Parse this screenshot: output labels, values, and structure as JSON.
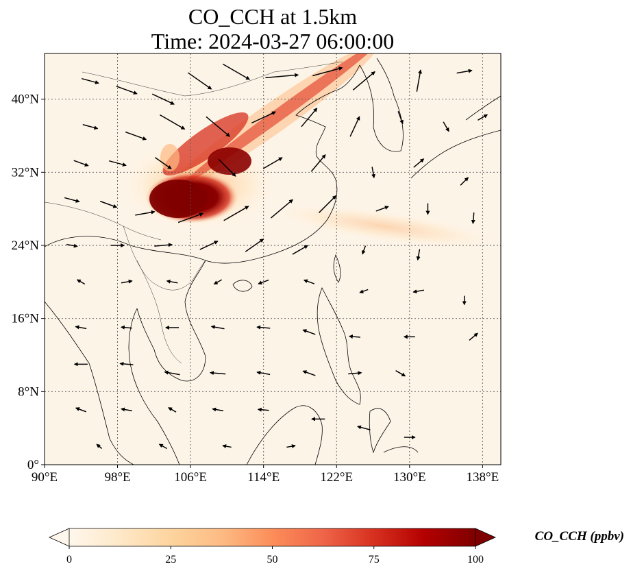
{
  "title": {
    "line1": "CO_CCH at 1.5km",
    "line2": "Time: 2024-03-27 06:00:00"
  },
  "map": {
    "lon_range": [
      90,
      140
    ],
    "lat_range": [
      0,
      45
    ],
    "lon_ticks": [
      {
        "value": 90,
        "label": "90°E"
      },
      {
        "value": 98,
        "label": "98°E"
      },
      {
        "value": 106,
        "label": "106°E"
      },
      {
        "value": 114,
        "label": "114°E"
      },
      {
        "value": 122,
        "label": "122°E"
      },
      {
        "value": 130,
        "label": "130°E"
      },
      {
        "value": 138,
        "label": "138°E"
      }
    ],
    "lat_ticks": [
      {
        "value": 0,
        "label": "0°"
      },
      {
        "value": 8,
        "label": "8°N"
      },
      {
        "value": 16,
        "label": "16°N"
      },
      {
        "value": 24,
        "label": "24°N"
      },
      {
        "value": 32,
        "label": "32°N"
      },
      {
        "value": 40,
        "label": "40°N"
      }
    ],
    "gridlines": true,
    "background_color": "#fdf4e8",
    "plumes": [
      {
        "name": "Sichuan Basin core",
        "lon": 104.5,
        "lat": 29.8,
        "value": 100
      },
      {
        "name": "northeast transport band",
        "lon": 119,
        "lat": 40.5,
        "value": 60
      },
      {
        "name": "western Pacific band",
        "lon": 133,
        "lat": 25,
        "value": 15
      }
    ],
    "wind_vectors": [
      {
        "lon": 95,
        "lat": 42,
        "dir": -15,
        "len": 0.8
      },
      {
        "lon": 99,
        "lat": 41,
        "dir": -20,
        "len": 1.0
      },
      {
        "lon": 103,
        "lat": 40,
        "dir": -25,
        "len": 1.1
      },
      {
        "lon": 107,
        "lat": 42,
        "dir": -35,
        "len": 1.3
      },
      {
        "lon": 111,
        "lat": 43,
        "dir": -30,
        "len": 1.4
      },
      {
        "lon": 116,
        "lat": 42.5,
        "dir": 5,
        "len": 1.5
      },
      {
        "lon": 121,
        "lat": 43,
        "dir": 15,
        "len": 1.4
      },
      {
        "lon": 125,
        "lat": 42,
        "dir": 40,
        "len": 1.3
      },
      {
        "lon": 131,
        "lat": 42,
        "dir": 80,
        "len": 1.0
      },
      {
        "lon": 136,
        "lat": 43,
        "dir": 10,
        "len": 0.7
      },
      {
        "lon": 95,
        "lat": 37,
        "dir": -15,
        "len": 0.7
      },
      {
        "lon": 100,
        "lat": 36,
        "dir": -20,
        "len": 1.0
      },
      {
        "lon": 104,
        "lat": 37.5,
        "dir": -30,
        "len": 1.3
      },
      {
        "lon": 109,
        "lat": 37,
        "dir": -40,
        "len": 1.4
      },
      {
        "lon": 114,
        "lat": 38,
        "dir": 25,
        "len": 1.2
      },
      {
        "lon": 119,
        "lat": 38,
        "dir": 50,
        "len": 1.1
      },
      {
        "lon": 124,
        "lat": 37,
        "dir": 65,
        "len": 1.0
      },
      {
        "lon": 129,
        "lat": 38,
        "dir": -70,
        "len": 0.6
      },
      {
        "lon": 134,
        "lat": 37,
        "dir": -60,
        "len": 0.5
      },
      {
        "lon": 138,
        "lat": 38,
        "dir": 30,
        "len": 0.5
      },
      {
        "lon": 94,
        "lat": 33,
        "dir": -20,
        "len": 0.7
      },
      {
        "lon": 98,
        "lat": 33,
        "dir": -15,
        "len": 0.8
      },
      {
        "lon": 103,
        "lat": 33,
        "dir": -35,
        "len": 0.9
      },
      {
        "lon": 110,
        "lat": 32.5,
        "dir": -45,
        "len": 1.1
      },
      {
        "lon": 115,
        "lat": 33,
        "dir": 30,
        "len": 1.0
      },
      {
        "lon": 120,
        "lat": 33,
        "dir": 50,
        "len": 1.0
      },
      {
        "lon": 126,
        "lat": 32,
        "dir": -80,
        "len": 0.5
      },
      {
        "lon": 131,
        "lat": 33,
        "dir": 40,
        "len": 0.6
      },
      {
        "lon": 136,
        "lat": 31,
        "dir": 45,
        "len": 0.5
      },
      {
        "lon": 93,
        "lat": 29,
        "dir": -15,
        "len": 0.7
      },
      {
        "lon": 97,
        "lat": 28.5,
        "dir": -20,
        "len": 0.8
      },
      {
        "lon": 101,
        "lat": 27.5,
        "dir": 10,
        "len": 0.9
      },
      {
        "lon": 106,
        "lat": 27,
        "dir": 20,
        "len": 1.2
      },
      {
        "lon": 111,
        "lat": 27.5,
        "dir": 30,
        "len": 1.3
      },
      {
        "lon": 116,
        "lat": 28,
        "dir": 40,
        "len": 1.3
      },
      {
        "lon": 121,
        "lat": 28.5,
        "dir": 45,
        "len": 1.1
      },
      {
        "lon": 127,
        "lat": 28,
        "dir": 20,
        "len": 0.6
      },
      {
        "lon": 132,
        "lat": 28,
        "dir": -90,
        "len": 0.5
      },
      {
        "lon": 137,
        "lat": 27,
        "dir": -95,
        "len": 0.5
      },
      {
        "lon": 93,
        "lat": 24,
        "dir": -10,
        "len": 0.5
      },
      {
        "lon": 98,
        "lat": 24,
        "dir": 0,
        "len": 0.6
      },
      {
        "lon": 103,
        "lat": 24,
        "dir": 5,
        "len": 0.8
      },
      {
        "lon": 108,
        "lat": 24,
        "dir": 25,
        "len": 0.9
      },
      {
        "lon": 113,
        "lat": 24,
        "dir": 35,
        "len": 1.0
      },
      {
        "lon": 118,
        "lat": 23.5,
        "dir": 30,
        "len": 0.8
      },
      {
        "lon": 125,
        "lat": 23.5,
        "dir": -110,
        "len": 0.4
      },
      {
        "lon": 131,
        "lat": 23,
        "dir": -100,
        "len": 0.5
      },
      {
        "lon": 94,
        "lat": 20,
        "dir": 150,
        "len": 0.4
      },
      {
        "lon": 99,
        "lat": 20,
        "dir": 10,
        "len": 0.5
      },
      {
        "lon": 104,
        "lat": 20,
        "dir": 170,
        "len": 0.5
      },
      {
        "lon": 109,
        "lat": 20,
        "dir": -150,
        "len": 0.4
      },
      {
        "lon": 114,
        "lat": 20,
        "dir": -160,
        "len": 0.5
      },
      {
        "lon": 119,
        "lat": 20,
        "dir": 160,
        "len": 0.5
      },
      {
        "lon": 125,
        "lat": 19,
        "dir": -160,
        "len": 0.4
      },
      {
        "lon": 131,
        "lat": 19,
        "dir": -170,
        "len": 0.5
      },
      {
        "lon": 136,
        "lat": 18,
        "dir": -90,
        "len": 0.4
      },
      {
        "lon": 94,
        "lat": 15,
        "dir": 170,
        "len": 0.5
      },
      {
        "lon": 99,
        "lat": 15,
        "dir": 175,
        "len": 0.5
      },
      {
        "lon": 104,
        "lat": 15,
        "dir": 180,
        "len": 0.6
      },
      {
        "lon": 109,
        "lat": 15,
        "dir": 170,
        "len": 0.6
      },
      {
        "lon": 114,
        "lat": 15,
        "dir": 175,
        "len": 0.6
      },
      {
        "lon": 119,
        "lat": 14.5,
        "dir": 160,
        "len": 0.6
      },
      {
        "lon": 124,
        "lat": 14,
        "dir": 175,
        "len": 0.5
      },
      {
        "lon": 130,
        "lat": 14,
        "dir": 180,
        "len": 0.5
      },
      {
        "lon": 137,
        "lat": 14,
        "dir": 40,
        "len": 0.5
      },
      {
        "lon": 94,
        "lat": 11,
        "dir": 180,
        "len": 0.6
      },
      {
        "lon": 99,
        "lat": 11,
        "dir": 175,
        "len": 0.6
      },
      {
        "lon": 104,
        "lat": 10,
        "dir": 170,
        "len": 0.7
      },
      {
        "lon": 109,
        "lat": 10,
        "dir": 175,
        "len": 0.7
      },
      {
        "lon": 114,
        "lat": 10,
        "dir": 170,
        "len": 0.6
      },
      {
        "lon": 119,
        "lat": 10,
        "dir": 160,
        "len": 0.6
      },
      {
        "lon": 124,
        "lat": 10,
        "dir": 5,
        "len": 0.6
      },
      {
        "lon": 129,
        "lat": 10,
        "dir": -30,
        "len": 0.5
      },
      {
        "lon": 94,
        "lat": 6,
        "dir": 160,
        "len": 0.5
      },
      {
        "lon": 99,
        "lat": 6,
        "dir": 170,
        "len": 0.5
      },
      {
        "lon": 104,
        "lat": 6,
        "dir": 150,
        "len": 0.4
      },
      {
        "lon": 109,
        "lat": 6,
        "dir": 170,
        "len": 0.5
      },
      {
        "lon": 114,
        "lat": 6,
        "dir": 175,
        "len": 0.5
      },
      {
        "lon": 120,
        "lat": 5,
        "dir": 180,
        "len": 0.6
      },
      {
        "lon": 125,
        "lat": 4,
        "dir": 165,
        "len": 0.6
      },
      {
        "lon": 130,
        "lat": 3,
        "dir": 0,
        "len": 0.5
      },
      {
        "lon": 96,
        "lat": 2,
        "dir": 140,
        "len": 0.3
      },
      {
        "lon": 103,
        "lat": 2,
        "dir": 150,
        "len": 0.4
      },
      {
        "lon": 110,
        "lat": 2,
        "dir": 170,
        "len": 0.4
      },
      {
        "lon": 117,
        "lat": 2,
        "dir": 10,
        "len": 0.4
      }
    ]
  },
  "colorbar": {
    "label": "CO_CCH (ppbv)",
    "min": 0,
    "max": 100,
    "extend": "both",
    "ticks": [
      {
        "value": 0,
        "label": "0"
      },
      {
        "value": 25,
        "label": "25"
      },
      {
        "value": 50,
        "label": "50"
      },
      {
        "value": 75,
        "label": "75"
      },
      {
        "value": 100,
        "label": "100"
      }
    ],
    "colormap": "OrRd",
    "color_stops": [
      "#fff7ec",
      "#fee8c8",
      "#fdd49e",
      "#fdbb84",
      "#fc8d59",
      "#ef6548",
      "#d7301f",
      "#b30000",
      "#7f0000"
    ]
  }
}
